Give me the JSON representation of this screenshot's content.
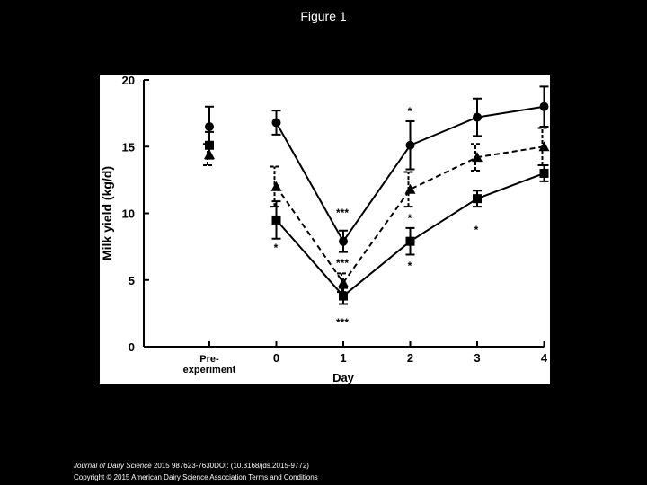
{
  "slide": {
    "title": "Figure 1",
    "footer": {
      "citation_journal": "Journal of Dairy Science",
      "citation_rest": " 2015 987623-7630DOI: (10.3168/jds.2015-9772)",
      "copyright": "Copyright © 2015 American Dairy Science Association",
      "link": "Terms and Conditions"
    }
  },
  "chart_data": {
    "type": "line",
    "x_label": "Day",
    "y_label": "Milk yield (kg/d)",
    "categories": [
      "Pre-\nexperiment",
      "0",
      "1",
      "2",
      "3",
      "4"
    ],
    "ylim": [
      0,
      20
    ],
    "yticks": [
      0,
      5,
      10,
      15,
      20
    ],
    "series": [
      {
        "name": "circle",
        "marker": "circle",
        "dash": false,
        "color": "#000",
        "values": [
          16.5,
          16.8,
          7.9,
          15.1,
          17.2,
          18.0
        ],
        "errors": [
          1.5,
          0.9,
          0.8,
          1.8,
          1.4,
          1.5
        ]
      },
      {
        "name": "triangle",
        "marker": "triangle",
        "dash": true,
        "color": "#000",
        "values": [
          14.4,
          12.0,
          4.8,
          11.8,
          14.2,
          15.0
        ],
        "errors": [
          0.8,
          1.5,
          0.7,
          1.3,
          1.0,
          1.4
        ]
      },
      {
        "name": "square",
        "marker": "square",
        "dash": false,
        "color": "#000",
        "values": [
          15.1,
          9.5,
          3.8,
          7.9,
          11.1,
          13.0
        ],
        "errors": [
          1.0,
          1.4,
          0.6,
          1.0,
          0.6,
          0.6
        ]
      }
    ],
    "annotations": [
      "*",
      "***",
      "*",
      "***",
      "***",
      "*",
      "*",
      "*"
    ]
  }
}
